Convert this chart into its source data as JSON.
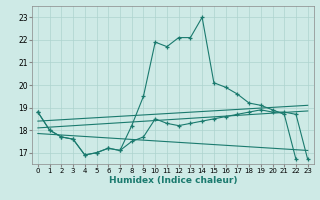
{
  "xlabel": "Humidex (Indice chaleur)",
  "background_color": "#ceeae6",
  "grid_color": "#aed4cf",
  "line_color": "#1a7a6e",
  "xlim": [
    -0.5,
    23.5
  ],
  "ylim": [
    16.5,
    23.5
  ],
  "xticks": [
    0,
    1,
    2,
    3,
    4,
    5,
    6,
    7,
    8,
    9,
    10,
    11,
    12,
    13,
    14,
    15,
    16,
    17,
    18,
    19,
    20,
    21,
    22,
    23
  ],
  "yticks": [
    17,
    18,
    19,
    20,
    21,
    22,
    23
  ],
  "line_main_x": [
    0,
    1,
    2,
    3,
    4,
    5,
    6,
    7,
    8,
    9,
    10,
    11,
    12,
    13,
    14,
    15,
    16,
    17,
    18,
    19,
    20,
    21,
    22
  ],
  "line_main_y": [
    18.8,
    18.0,
    17.7,
    17.6,
    16.9,
    17.0,
    17.2,
    17.1,
    18.2,
    19.5,
    21.9,
    21.7,
    22.1,
    22.1,
    23.0,
    20.1,
    19.9,
    19.6,
    19.2,
    19.1,
    18.9,
    18.7,
    16.7
  ],
  "line_low_x": [
    0,
    1,
    2,
    3,
    4,
    5,
    6,
    7,
    8,
    9,
    10,
    11,
    12,
    13,
    14,
    15,
    16,
    17,
    18,
    19,
    20,
    21,
    22,
    23
  ],
  "line_low_y": [
    18.8,
    18.0,
    17.7,
    17.6,
    16.9,
    17.0,
    17.2,
    17.1,
    17.5,
    17.7,
    18.5,
    18.3,
    18.2,
    18.3,
    18.4,
    18.5,
    18.6,
    18.7,
    18.8,
    18.9,
    18.8,
    18.8,
    18.7,
    16.7
  ],
  "line_trend1_x": [
    0,
    23
  ],
  "line_trend1_y": [
    17.85,
    17.1
  ],
  "line_trend2_x": [
    0,
    23
  ],
  "line_trend2_y": [
    18.1,
    18.85
  ],
  "line_trend3_x": [
    0,
    23
  ],
  "line_trend3_y": [
    18.4,
    19.1
  ]
}
